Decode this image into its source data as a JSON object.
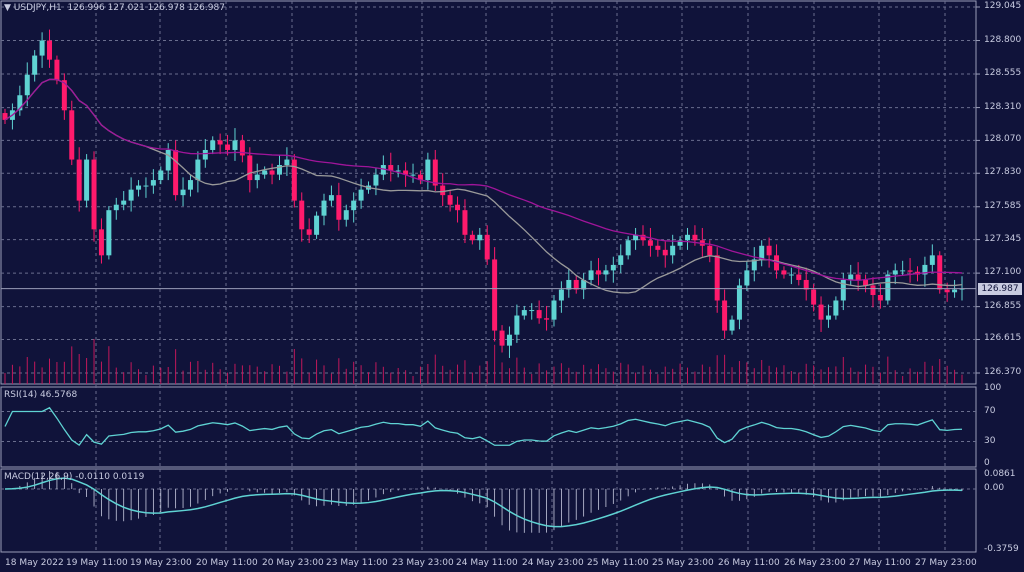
{
  "header": {
    "symbol": "USDJPY,H1",
    "ohlc": "126.996 127.021 126.978 126.987"
  },
  "colors": {
    "background": "#10133a",
    "bull": "#5fd3d3",
    "bear": "#ff1a6c",
    "ma_slow": "#a0159a",
    "ma_fast": "#9a9a9a",
    "rsi": "#5fd3d3",
    "macd_line": "#5fd3d3",
    "macd_hist": "#c8cbe0",
    "volume": "#c2185b",
    "grid": "#6a6e8e"
  },
  "price_axis": {
    "ticks": [
      "129.045",
      "128.800",
      "128.555",
      "128.310",
      "128.070",
      "127.830",
      "127.585",
      "127.345",
      "127.100",
      "126.855",
      "126.615",
      "126.370"
    ],
    "current": "126.987"
  },
  "rsi": {
    "label": "RSI(14) 46.5768",
    "period": 14,
    "ticks": [
      "100",
      "70",
      "30",
      "0"
    ]
  },
  "macd": {
    "label": "MACD(12,26,9) -0.0110 0.0119",
    "fast": 12,
    "slow": 26,
    "signal": 9,
    "ticks": [
      "0.0861",
      "0.00",
      "-0.3759"
    ]
  },
  "time_axis": [
    "18 May 2022",
    "19 May 11:00",
    "19 May 23:00",
    "20 May 11:00",
    "20 May 23:00",
    "23 May 11:00",
    "23 May 23:00",
    "24 May 11:00",
    "24 May 23:00",
    "25 May 11:00",
    "25 May 23:00",
    "26 May 11:00",
    "26 May 23:00",
    "27 May 11:00",
    "27 May 23:00"
  ],
  "chart_data": {
    "type": "candlestick",
    "x_start": "18 May 2022",
    "interval": "H1",
    "price_range": [
      126.37,
      129.045
    ],
    "closes": [
      128.22,
      128.29,
      128.4,
      128.55,
      128.69,
      128.8,
      128.66,
      128.51,
      128.29,
      127.93,
      127.63,
      127.93,
      127.42,
      127.23,
      127.56,
      127.6,
      127.63,
      127.71,
      127.74,
      127.74,
      127.78,
      127.85,
      128.0,
      127.67,
      127.71,
      127.78,
      127.93,
      128.0,
      128.07,
      128.04,
      128.0,
      128.07,
      127.96,
      127.78,
      127.82,
      127.85,
      127.82,
      127.89,
      127.93,
      127.63,
      127.42,
      127.38,
      127.52,
      127.63,
      127.67,
      127.49,
      127.56,
      127.63,
      127.71,
      127.74,
      127.82,
      127.89,
      127.85,
      127.85,
      127.82,
      127.82,
      127.78,
      127.93,
      127.74,
      127.67,
      127.6,
      127.56,
      127.38,
      127.34,
      127.38,
      127.2,
      126.68,
      126.57,
      126.65,
      126.79,
      126.83,
      126.83,
      126.77,
      126.76,
      126.9,
      126.98,
      127.05,
      126.98,
      127.05,
      127.12,
      127.09,
      127.12,
      127.16,
      127.23,
      127.34,
      127.38,
      127.34,
      127.3,
      127.27,
      127.23,
      127.3,
      127.34,
      127.38,
      127.34,
      127.3,
      127.23,
      126.9,
      126.68,
      126.76,
      127.01,
      127.12,
      127.2,
      127.3,
      127.23,
      127.12,
      127.09,
      127.09,
      127.05,
      126.98,
      126.87,
      126.76,
      126.79,
      126.9,
      127.05,
      127.09,
      127.05,
      127.01,
      126.94,
      126.9,
      127.09,
      127.12,
      127.12,
      127.11,
      127.09,
      127.16,
      127.23,
      126.98,
      126.96,
      126.98,
      126.987
    ],
    "ma_periods": [
      20,
      50
    ]
  }
}
